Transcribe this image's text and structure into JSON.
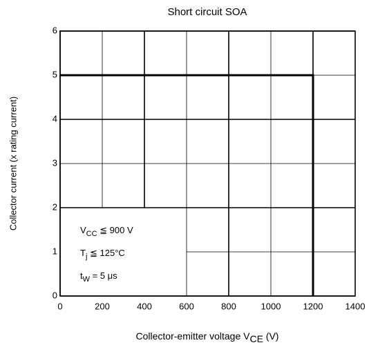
{
  "chart_data": {
    "type": "line",
    "title": "Short circuit SOA",
    "x_label": [
      "Collector-emitter voltage   V",
      "CE",
      "   (V)"
    ],
    "y_label": "Collector current    (x rating current)",
    "x": [
      0,
      1200,
      1200
    ],
    "series": [
      {
        "color": "#000000",
        "values": [
          5,
          5,
          0
        ]
      }
    ],
    "xlim": [
      0,
      1400
    ],
    "xticks": [
      0,
      200,
      400,
      600,
      800,
      1000,
      1200,
      1400
    ],
    "ylim": [
      0,
      6
    ],
    "yticks": [
      0,
      1,
      2,
      3,
      4,
      5,
      6
    ],
    "grid": true,
    "annotation_box_xlim": [
      0,
      600
    ],
    "annotation_box_ylim": [
      0,
      2
    ],
    "annotations": [
      [
        "V",
        "CC",
        " ≦ 900 V"
      ],
      [
        "T",
        "j",
        " ≦ 125°C"
      ],
      [
        "t",
        "W",
        " = 5 μs"
      ]
    ]
  }
}
